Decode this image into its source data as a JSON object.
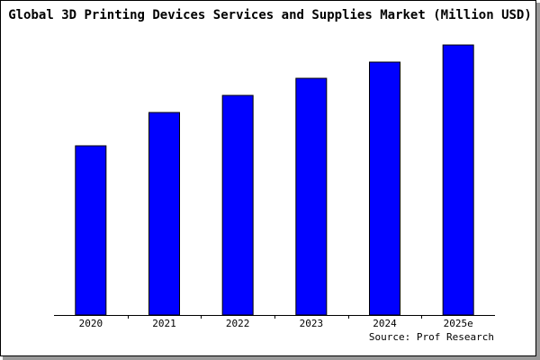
{
  "chart_data": {
    "type": "bar",
    "title": "Global 3D Printing Devices Services and Supplies Market (Million USD)",
    "categories": [
      "2020",
      "2021",
      "2022",
      "2023",
      "2024",
      "2025e"
    ],
    "values": [
      188,
      225,
      244,
      263,
      281,
      300
    ],
    "color": "#0000ff",
    "ylim": [
      0,
      302
    ],
    "source": "Source: Prof Research"
  }
}
